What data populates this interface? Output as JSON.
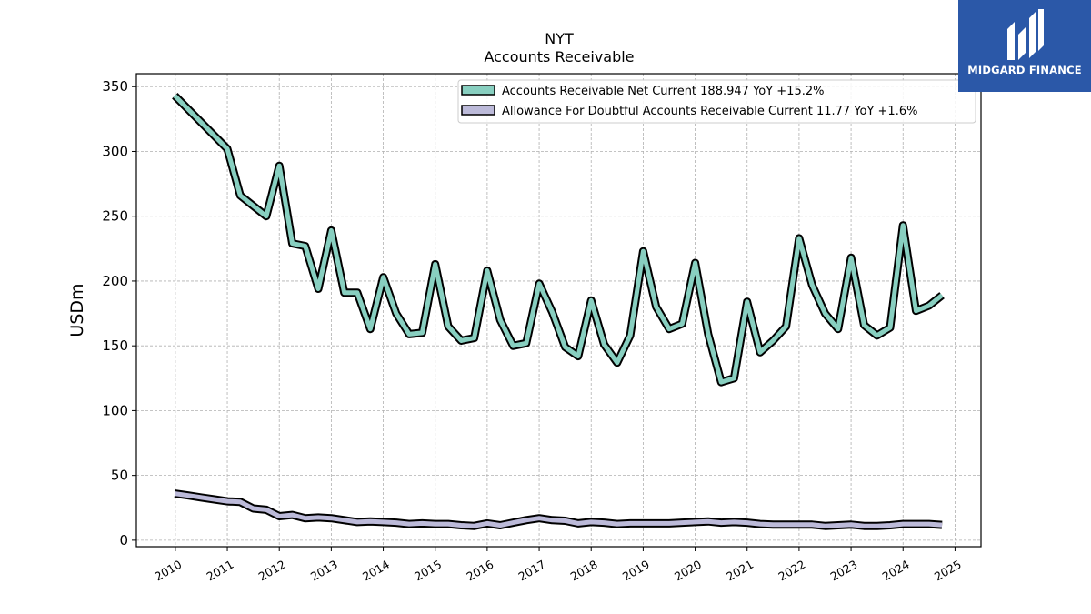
{
  "logo": {
    "text": "MIDGARD FINANCE",
    "color": "#2b58a8"
  },
  "chart_data": {
    "type": "line",
    "title": "NYT",
    "subtitle": "Accounts Receivable",
    "ylabel": "USDm",
    "xlabel": "",
    "ylim": [
      -5,
      360
    ],
    "xlim": [
      2009.25,
      2025.5
    ],
    "yticks": [
      0,
      50,
      100,
      150,
      200,
      250,
      300,
      350
    ],
    "xticks": [
      2010,
      2011,
      2012,
      2013,
      2014,
      2015,
      2016,
      2017,
      2018,
      2019,
      2020,
      2021,
      2022,
      2023,
      2024,
      2025
    ],
    "grid": true,
    "legend_position": "top-right",
    "series": [
      {
        "name": "Accounts Receivable Net Current",
        "legend_label": "Accounts Receivable Net Current  188.947 YoY +15.2%",
        "color": "#88cfc0",
        "x": [
          2009.99,
          2011.0,
          2011.25,
          2011.5,
          2011.75,
          2012.0,
          2012.25,
          2012.5,
          2012.75,
          2013.0,
          2013.25,
          2013.5,
          2013.75,
          2014.0,
          2014.25,
          2014.5,
          2014.75,
          2015.0,
          2015.25,
          2015.5,
          2015.75,
          2016.0,
          2016.25,
          2016.5,
          2016.75,
          2017.0,
          2017.25,
          2017.5,
          2017.75,
          2018.0,
          2018.25,
          2018.5,
          2018.75,
          2019.0,
          2019.25,
          2019.5,
          2019.75,
          2020.0,
          2020.25,
          2020.5,
          2020.75,
          2021.0,
          2021.25,
          2021.5,
          2021.75,
          2022.0,
          2022.25,
          2022.5,
          2022.75,
          2023.0,
          2023.25,
          2023.5,
          2023.75,
          2024.0,
          2024.25,
          2024.5,
          2024.75
        ],
        "values": [
          343,
          302,
          266,
          258,
          250,
          289,
          229,
          227,
          194,
          239,
          191,
          191,
          163,
          203,
          175,
          159,
          160,
          213,
          165,
          154,
          156,
          208,
          170,
          150,
          152,
          198,
          176,
          149,
          142,
          185,
          151,
          137,
          158,
          223,
          180,
          163,
          167,
          214,
          159,
          122,
          125,
          184,
          145,
          154,
          165,
          233,
          197,
          175,
          163,
          218,
          166,
          158,
          164,
          243,
          177,
          181,
          189
        ]
      },
      {
        "name": "Allowance For Doubtful Accounts Receivable Current",
        "legend_label": "Allowance For Doubtful Accounts Receivable Current  11.77 YoY +1.6%",
        "color": "#bcbad9",
        "x": [
          2009.99,
          2010.25,
          2010.5,
          2010.75,
          2011.0,
          2011.25,
          2011.5,
          2011.75,
          2012.0,
          2012.25,
          2012.5,
          2012.75,
          2013.0,
          2013.25,
          2013.5,
          2013.75,
          2014.0,
          2014.25,
          2014.5,
          2014.75,
          2015.0,
          2015.25,
          2015.5,
          2015.75,
          2016.0,
          2016.25,
          2016.5,
          2016.75,
          2017.0,
          2017.25,
          2017.5,
          2017.75,
          2018.0,
          2018.25,
          2018.5,
          2018.75,
          2019.0,
          2019.25,
          2019.5,
          2019.75,
          2020.0,
          2020.25,
          2020.5,
          2020.75,
          2021.0,
          2021.25,
          2021.5,
          2021.75,
          2022.0,
          2022.25,
          2022.5,
          2022.75,
          2023.0,
          2023.25,
          2023.5,
          2023.75,
          2024.0,
          2024.25,
          2024.5,
          2024.75
        ],
        "values": [
          36,
          34.5,
          33,
          31.5,
          30,
          29.5,
          24.5,
          23.5,
          18.5,
          19.5,
          17,
          17.5,
          17,
          15.5,
          14,
          14.5,
          14,
          13.5,
          12.5,
          13,
          12.5,
          12.5,
          11.5,
          11,
          13,
          11.5,
          13.5,
          15.5,
          17,
          15.5,
          15,
          13,
          14,
          13.5,
          12.5,
          13,
          13,
          13,
          13,
          13.5,
          14,
          14.5,
          13.5,
          14,
          13.5,
          12.5,
          12,
          12,
          12,
          12,
          11,
          11.5,
          12,
          11,
          11,
          11.5,
          12.5,
          12.5,
          12.5,
          11.77
        ]
      }
    ]
  }
}
